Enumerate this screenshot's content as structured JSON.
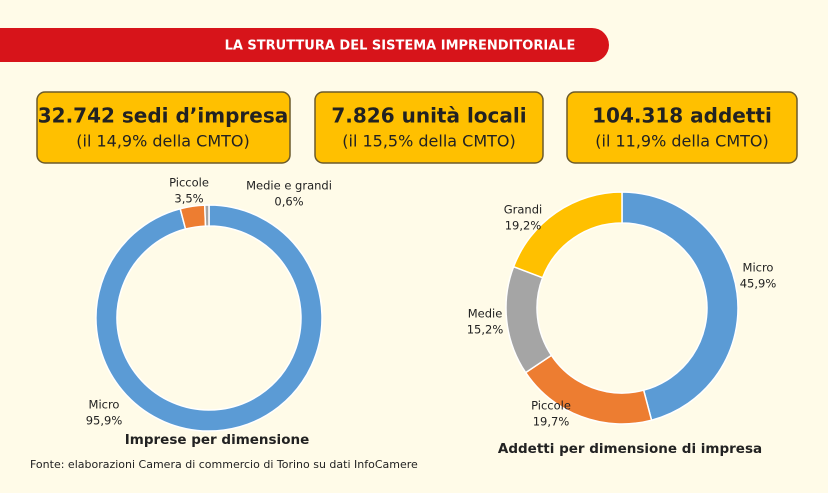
{
  "header": {
    "title": "LA STRUTTURA DEL SISTEMA IMPRENDITORIALE"
  },
  "boxes": [
    {
      "headline": "32.742 sedi d’impresa",
      "note": "(il 14,9% della CMTO)"
    },
    {
      "headline": "7.826 unità locali",
      "note": "(il 15,5% della CMTO)"
    },
    {
      "headline": "104.318 addetti",
      "note": "(il 11,9% della CMTO)"
    }
  ],
  "chart_data": [
    {
      "type": "donut",
      "title": "Imprese per dimensione",
      "categories": [
        "Micro",
        "Piccole",
        "Medie e grandi"
      ],
      "values": [
        95.9,
        3.5,
        0.6
      ],
      "value_labels": [
        "95,9%",
        "3,5%",
        "0,6%"
      ],
      "colors": [
        "#5b9bd5",
        "#ed7d31",
        "#a5a5a5"
      ]
    },
    {
      "type": "donut",
      "title": "Addetti per dimensione di impresa",
      "categories": [
        "Micro",
        "Piccole",
        "Medie",
        "Grandi"
      ],
      "values": [
        45.9,
        19.7,
        15.2,
        19.2
      ],
      "value_labels": [
        "45,9%",
        "19,7%",
        "15,2%",
        "19,2%"
      ],
      "colors": [
        "#5b9bd5",
        "#ed7d31",
        "#a5a5a5",
        "#ffc000"
      ]
    }
  ],
  "source": "Fonte: elaborazioni Camera di commercio di Torino su dati InfoCamere"
}
